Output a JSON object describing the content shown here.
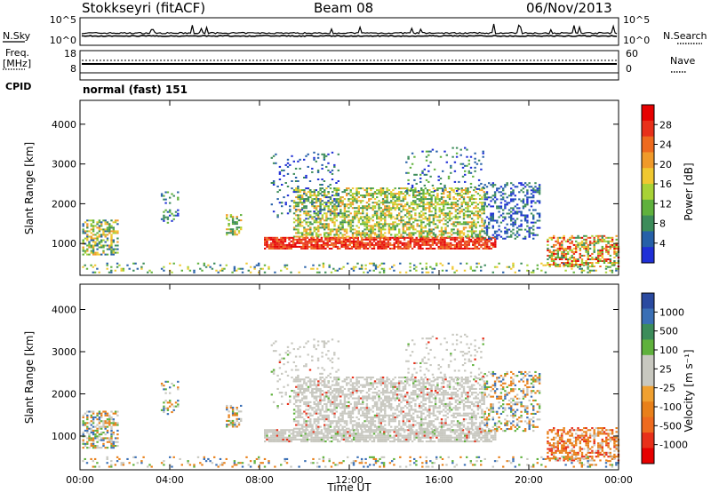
{
  "header": {
    "station": "Stokkseyri (fitACF)",
    "beam": "Beam 08",
    "date": "06/Nov/2013"
  },
  "labels": {
    "nsky": "N.Sky",
    "nsearch": "N.Search",
    "freq": "Freq.",
    "freq_unit": "[MHz]",
    "nave": "Nave",
    "cpid": "CPID",
    "mode": "normal (fast) 151",
    "slant_range": "Slant Range [km]",
    "time_axis": "Time UT",
    "power_cb": "Power [dB]",
    "velocity_cb": "Velocity [m s⁻¹]"
  },
  "colors": {
    "power": [
      "#1f2fd6",
      "#2660a8",
      "#3c8c5a",
      "#5fb13c",
      "#a8d236",
      "#f0c830",
      "#f09a2a",
      "#ee6a1e",
      "#e8301a",
      "#e60000"
    ],
    "velocity_neg": "#e8301a",
    "velocity_zero": "#c8c8c0",
    "velocity_pos": "#3a6fb5"
  },
  "chart_data": [
    {
      "type": "line",
      "title": "N.Sky / N.Search",
      "x": [
        "00:00",
        "04:00",
        "08:00",
        "12:00",
        "16:00",
        "20:00",
        "00:00"
      ],
      "y_left_ticks": [
        "10^5",
        "10^0"
      ],
      "y_right_ticks": [
        "10^5",
        "10^0"
      ],
      "series": [
        {
          "name": "N.Sky"
        },
        {
          "name": "N.Search"
        }
      ]
    },
    {
      "type": "line",
      "title": "Freq / Nave",
      "y_left_ticks": [
        18,
        8
      ],
      "y_right_ticks": [
        60,
        0
      ],
      "series": [
        {
          "name": "Freq."
        },
        {
          "name": "Nave"
        }
      ]
    },
    {
      "type": "heatmap",
      "title": "Power",
      "xlabel": "",
      "ylabel": "Slant Range [km]",
      "x_ticks": [
        "00:00",
        "04:00",
        "08:00",
        "12:00",
        "16:00",
        "20:00",
        "00:00"
      ],
      "ylim": [
        200,
        4600
      ],
      "y_ticks": [
        1000,
        2000,
        3000,
        4000
      ],
      "colorbar": {
        "label": "Power [dB]",
        "ticks": [
          4,
          8,
          12,
          16,
          20,
          24,
          28
        ]
      }
    },
    {
      "type": "heatmap",
      "title": "Velocity",
      "xlabel": "Time UT",
      "ylabel": "Slant Range [km]",
      "x_ticks": [
        "00:00",
        "04:00",
        "08:00",
        "12:00",
        "16:00",
        "20:00",
        "00:00"
      ],
      "ylim": [
        200,
        4600
      ],
      "y_ticks": [
        1000,
        2000,
        3000,
        4000
      ],
      "colorbar": {
        "label": "Velocity [m s⁻¹]",
        "ticks": [
          1000,
          500,
          100,
          25,
          -25,
          -100,
          -500,
          -1000
        ]
      }
    }
  ]
}
